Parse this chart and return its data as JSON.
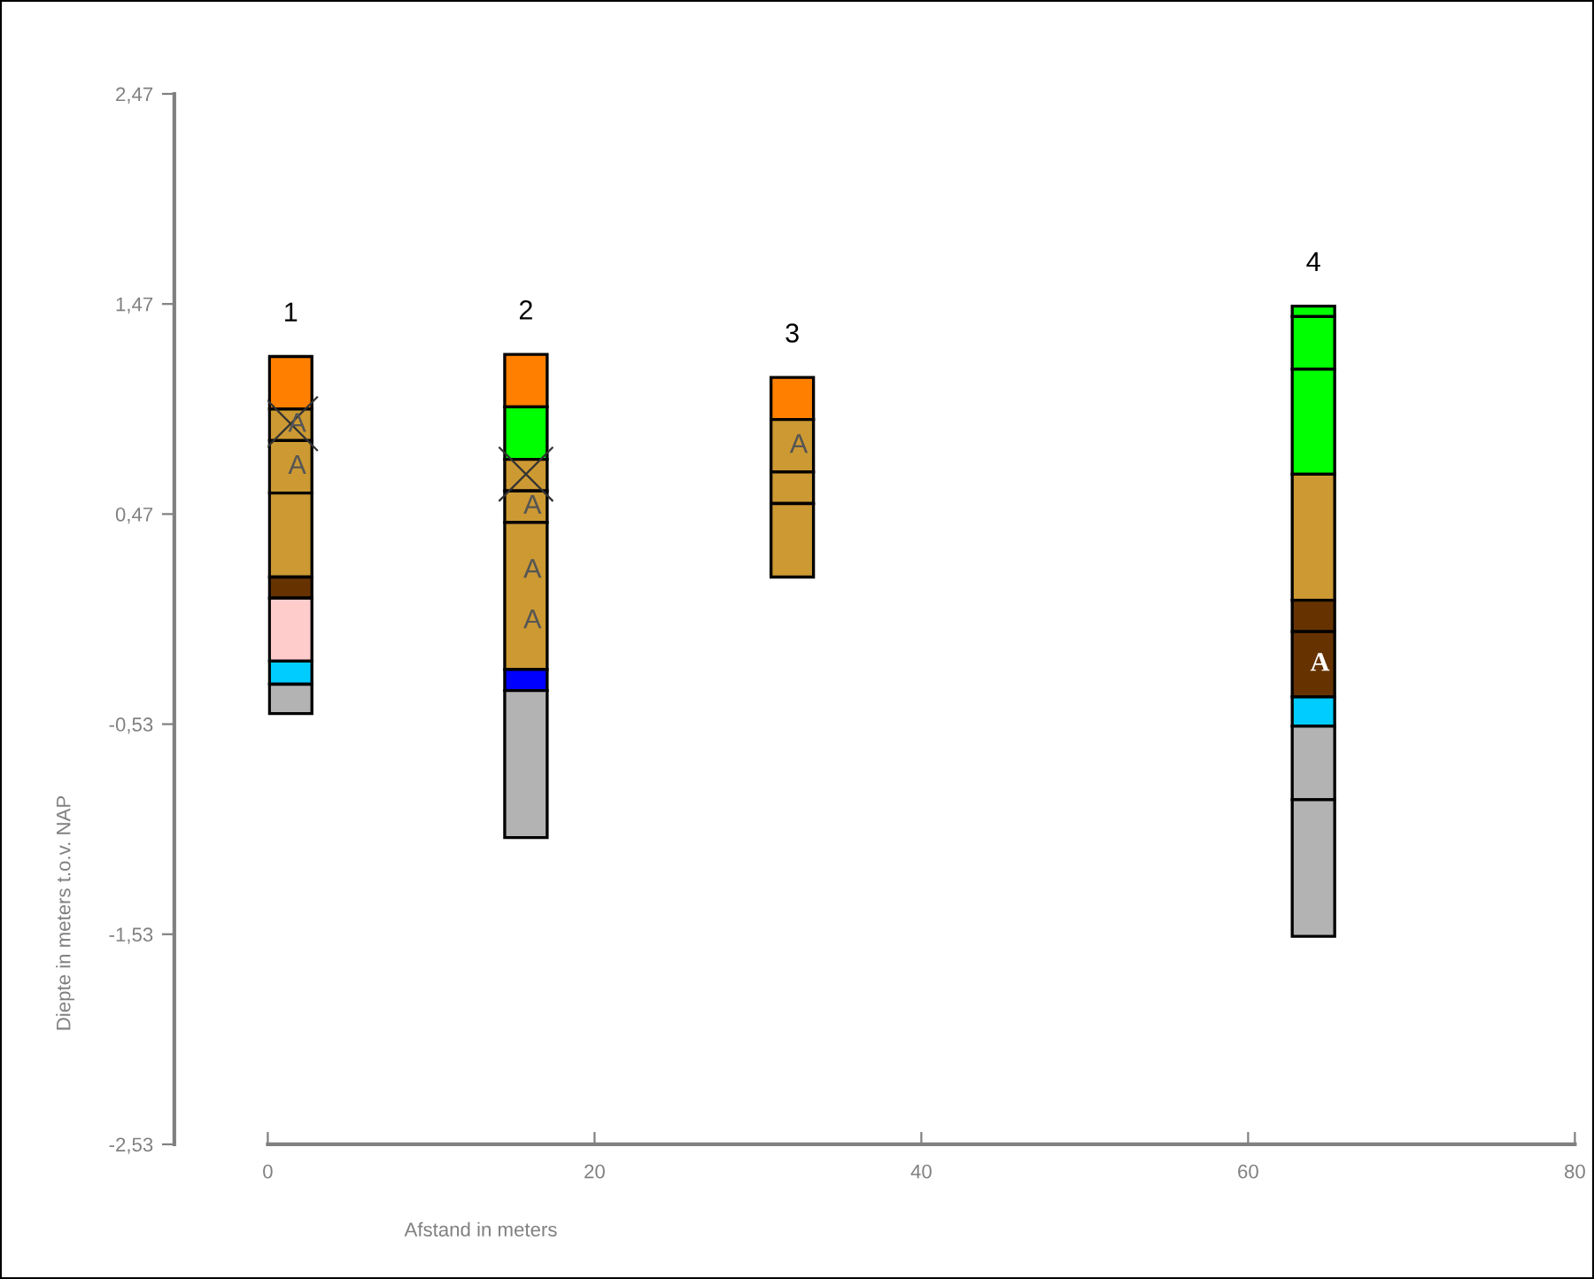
{
  "chart_data": {
    "type": "bar",
    "xlabel": "Afstand in meters",
    "ylabel": "Diepte in meters t.o.v. NAP",
    "x": [
      1.4,
      15.8,
      32.1,
      64.0
    ],
    "xlim": [
      0,
      80
    ],
    "xticks": [
      0,
      20,
      40,
      60,
      80
    ],
    "ylim": [
      -2.53,
      2.47
    ],
    "yticks": [
      {
        "value": 2.47,
        "label": "2,47"
      },
      {
        "value": 1.47,
        "label": "1,47"
      },
      {
        "value": 0.47,
        "label": "0,47"
      },
      {
        "value": -0.53,
        "label": "-0,53"
      },
      {
        "value": -1.53,
        "label": "-1,53"
      },
      {
        "value": -2.53,
        "label": "-2,53"
      }
    ],
    "grid": false,
    "legend": false,
    "series": [
      {
        "base": [
          0.97,
          0.98,
          0.92,
          1.41
        ],
        "values": [
          0.25,
          0.25,
          0.2,
          0.05
        ],
        "colors": [
          "#ff8000",
          "#ff8000",
          "#ff8000",
          "#00ff00"
        ],
        "value_labels": [
          null,
          null,
          null,
          null
        ]
      },
      {
        "base": [
          0.82,
          0.73,
          0.67,
          1.16
        ],
        "values": [
          0.15,
          0.25,
          0.25,
          0.25
        ],
        "colors": [
          "#cc9933",
          "#00ff00",
          "#cc9933",
          "#00ff00"
        ],
        "value_labels": [
          "A",
          null,
          "A",
          null
        ]
      },
      {
        "base": [
          0.57,
          0.58,
          0.52,
          0.66
        ],
        "values": [
          0.25,
          0.15,
          0.15,
          0.5
        ],
        "colors": [
          "#cc9933",
          "#cc9933",
          "#cc9933",
          "#00ff00"
        ],
        "value_labels": [
          "A",
          null,
          null,
          null
        ]
      },
      {
        "base": [
          0.17,
          0.43,
          0.17,
          0.06
        ],
        "values": [
          0.4,
          0.15,
          0.35,
          0.6
        ],
        "colors": [
          "#cc9933",
          "#cc9933",
          "#cc9933",
          "#cc9933"
        ],
        "value_labels": [
          null,
          "A",
          null,
          null
        ]
      },
      {
        "base": [
          0.07,
          -0.27,
          null,
          -0.09
        ],
        "values": [
          0.1,
          0.7,
          null,
          0.15
        ],
        "colors": [
          "#663300",
          "#cc9933",
          null,
          "#663300"
        ],
        "value_labels": [
          null,
          "A\n\nA",
          null,
          null
        ]
      },
      {
        "base": [
          -0.23,
          -0.37,
          null,
          -0.4
        ],
        "values": [
          0.3,
          0.1,
          null,
          0.31
        ],
        "colors": [
          "#ffcccc",
          "#0000ff",
          null,
          "#663300"
        ],
        "value_labels": [
          null,
          null,
          null,
          "A"
        ]
      },
      {
        "base": [
          -0.34,
          -1.07,
          null,
          -0.54
        ],
        "values": [
          0.11,
          0.7,
          null,
          0.14
        ],
        "colors": [
          "#00ccff",
          "#b3b3b3",
          null,
          "#00ccff"
        ],
        "value_labels": [
          null,
          null,
          null,
          null
        ]
      },
      {
        "base": [
          -0.48,
          null,
          null,
          -0.89
        ],
        "values": [
          0.14,
          null,
          null,
          0.35
        ],
        "colors": [
          "#b3b3b3",
          null,
          null,
          "#b3b3b3"
        ],
        "value_labels": [
          null,
          null,
          null,
          null
        ]
      },
      {
        "base": [
          null,
          null,
          null,
          -1.54
        ],
        "values": [
          null,
          null,
          null,
          0.65
        ],
        "colors": [
          null,
          null,
          null,
          "#b3b3b3"
        ],
        "value_labels": [
          null,
          null,
          null,
          null
        ]
      },
      {
        "type": "scatter",
        "marker": "cross",
        "color": "#333333",
        "x": [
          1.4,
          15.8
        ],
        "values": [
          0.9,
          0.66
        ]
      }
    ],
    "annotations": [
      {
        "text": "1",
        "x": 1.4,
        "y": 1.22
      },
      {
        "text": "2",
        "x": 15.8,
        "y": 1.23
      },
      {
        "text": "3",
        "x": 32.1,
        "y": 1.12
      },
      {
        "text": "4",
        "x": 64.0,
        "y": 1.46
      }
    ]
  }
}
